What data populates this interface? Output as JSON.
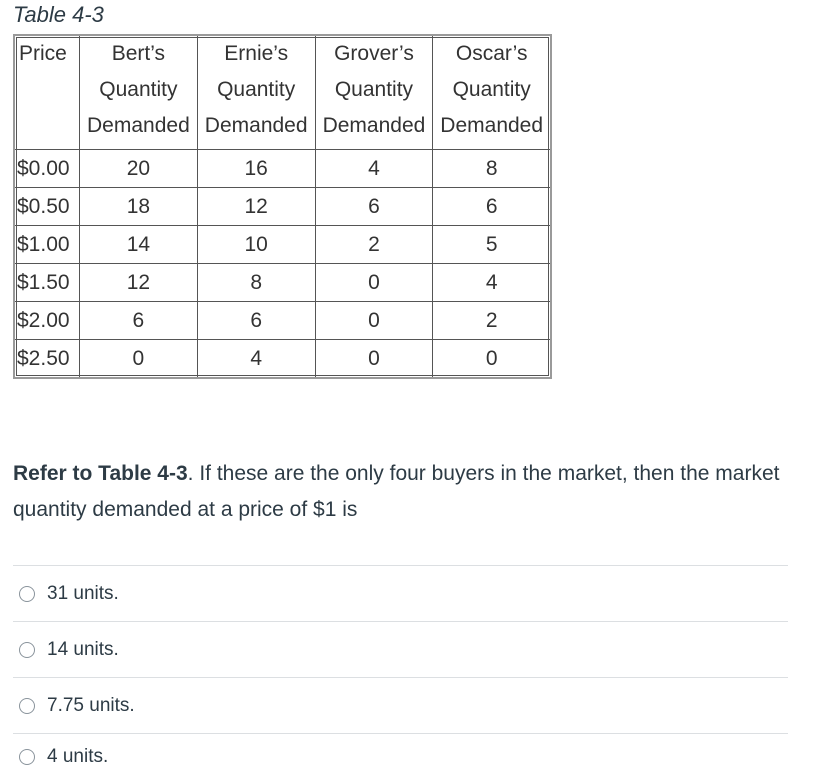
{
  "table": {
    "title": "Table 4-3",
    "headers": [
      [
        "Price"
      ],
      [
        "Bert’s",
        "Quantity",
        "Demanded"
      ],
      [
        "Ernie’s",
        "Quantity",
        "Demanded"
      ],
      [
        "Grover’s",
        "Quantity",
        "Demanded"
      ],
      [
        "Oscar’s",
        "Quantity",
        "Demanded"
      ]
    ],
    "rows": [
      [
        "$0.00",
        "20",
        "16",
        "4",
        "8"
      ],
      [
        "$0.50",
        "18",
        "12",
        "6",
        "6"
      ],
      [
        "$1.00",
        "14",
        "10",
        "2",
        "5"
      ],
      [
        "$1.50",
        "12",
        "8",
        "0",
        "4"
      ],
      [
        "$2.00",
        "6",
        "6",
        "0",
        "2"
      ],
      [
        "$2.50",
        "0",
        "4",
        "0",
        "0"
      ]
    ]
  },
  "question": {
    "ref": "Refer to Table 4-3",
    "text": ".  If these are the only four buyers in the market, then the market quantity demanded at a price of $1 is"
  },
  "answers": [
    "31 units.",
    "14 units.",
    "7.75 units.",
    "4 units."
  ]
}
